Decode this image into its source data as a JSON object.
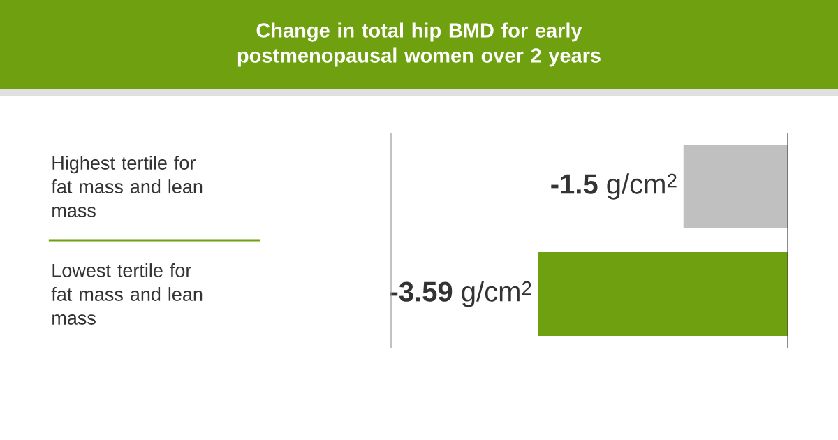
{
  "chart_data": {
    "type": "bar",
    "orientation": "horizontal",
    "title": "Change in total hip BMD for early postmenopausal women over 2 years",
    "categories": [
      "Highest tertile for fat mass and lean mass",
      "Lowest tertile for fat mass and lean mass"
    ],
    "values": [
      -1.5,
      -3.59
    ],
    "colors": [
      "#c0c0c0",
      "#6ea010"
    ],
    "value_labels": [
      "**-1.5** g/cm$^{2}$",
      "**-3.59** g/cm$^{2}$"
    ]
  }
}
